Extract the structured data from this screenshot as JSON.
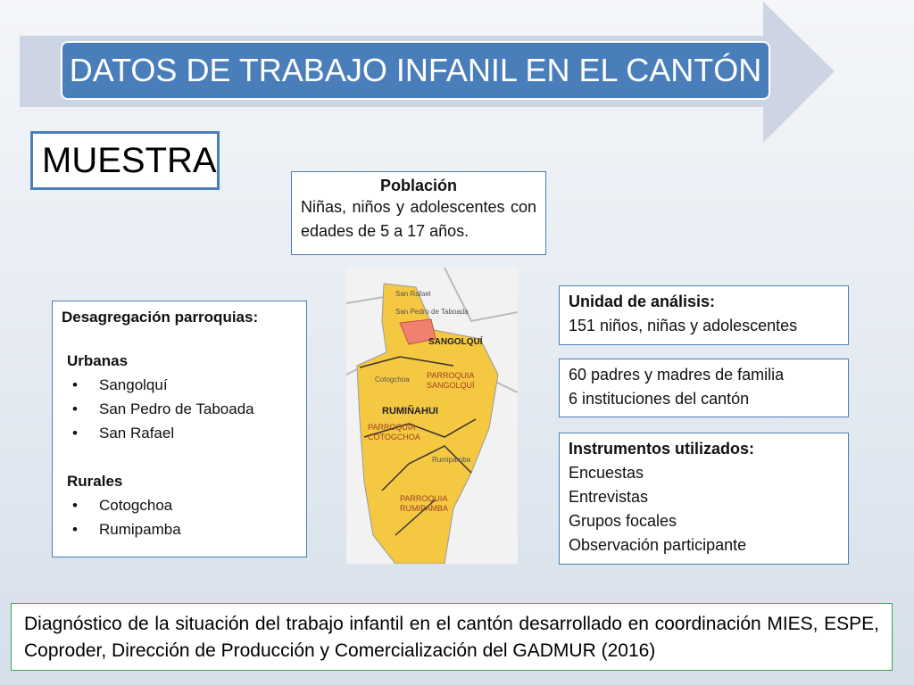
{
  "header": {
    "title": "DATOS DE TRABAJO INFANIL EN EL CANTÓN"
  },
  "section": "MUESTRA",
  "poblacion": {
    "title": "Población",
    "text": "Niñas, niños y adolescentes con edades de 5 a 17 años."
  },
  "desagregacion": {
    "title": "Desagregación parroquias:",
    "urbanas": {
      "title": "Urbanas",
      "items": [
        "Sangolquí",
        "San Pedro de Taboada",
        "San Rafael"
      ]
    },
    "rurales": {
      "title": "Rurales",
      "items": [
        "Cotogchoa",
        "Rumipamba"
      ]
    }
  },
  "map": {
    "labels": [
      "San Rafael",
      "San Pedro de Taboada",
      "SANGOLQUÍ",
      "Cotogchoa",
      "RUMIÑAHUI",
      "Rumipamba"
    ],
    "parroquias": [
      [
        "PARROQUIA",
        "SANGOLQUÍ"
      ],
      [
        "PARROQUIA",
        "COTOGCHOA"
      ],
      [
        "PARROQUIA",
        "RUMIPAMBA"
      ]
    ]
  },
  "unidad": {
    "title": "Unidad de análisis:",
    "text": "151 niños, niñas y adolescentes"
  },
  "padres": {
    "lines": [
      "60 padres y madres de familia",
      "6 instituciones del cantón"
    ]
  },
  "instrumentos": {
    "title": "Instrumentos utilizados:",
    "items": [
      "Encuestas",
      "Entrevistas",
      "Grupos focales",
      "Observación participante"
    ]
  },
  "footer": {
    "text": "Diagnóstico de la situación del trabajo infantil en el cantón desarrollado en coordinación MIES, ESPE, Coproder, Dirección de Producción y Comercialización del GADMUR (2016)"
  }
}
